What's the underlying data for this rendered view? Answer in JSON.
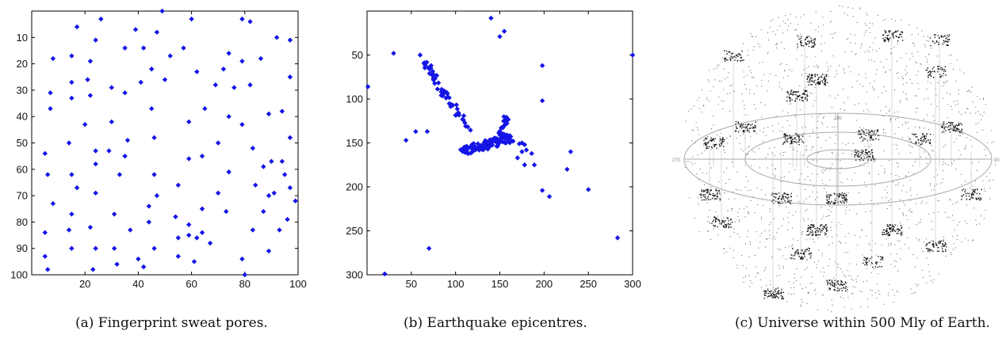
{
  "captions": {
    "a": "(a) Fingerprint sweat pores.",
    "b": "(b) Earthquake epicentres.",
    "c": "(c) Universe within 500 Mly of Earth."
  },
  "colors": {
    "marker": "#1515e6",
    "axis": "#000000",
    "ring": "#aaaaaa",
    "dots": "#222222"
  },
  "chart_data": [
    {
      "type": "scatter",
      "title": "",
      "xlabel": "",
      "ylabel": "",
      "xlim": [
        0,
        100
      ],
      "ylim": [
        100,
        0
      ],
      "y_inverted": true,
      "xticks": [
        20,
        40,
        60,
        80,
        100
      ],
      "yticks": [
        10,
        20,
        30,
        40,
        50,
        60,
        70,
        80,
        90,
        100
      ],
      "marker": "diamond",
      "series": [
        {
          "points": [
            [
              49,
              0
            ],
            [
              26,
              3
            ],
            [
              60,
              3
            ],
            [
              79,
              3
            ],
            [
              82,
              4
            ],
            [
              17,
              6
            ],
            [
              39,
              7
            ],
            [
              47,
              8
            ],
            [
              24,
              11
            ],
            [
              92,
              10
            ],
            [
              97,
              11
            ],
            [
              35,
              14
            ],
            [
              42,
              14
            ],
            [
              57,
              14
            ],
            [
              52,
              17
            ],
            [
              74,
              16
            ],
            [
              8,
              18
            ],
            [
              15,
              17
            ],
            [
              22,
              19
            ],
            [
              79,
              19
            ],
            [
              86,
              18
            ],
            [
              45,
              22
            ],
            [
              72,
              22
            ],
            [
              62,
              23
            ],
            [
              97,
              25
            ],
            [
              41,
              27
            ],
            [
              15,
              27
            ],
            [
              21,
              26
            ],
            [
              50,
              26
            ],
            [
              69,
              28
            ],
            [
              30,
              29
            ],
            [
              76,
              29
            ],
            [
              82,
              28
            ],
            [
              7,
              31
            ],
            [
              22,
              32
            ],
            [
              35,
              31
            ],
            [
              15,
              33
            ],
            [
              45,
              37
            ],
            [
              7,
              37
            ],
            [
              89,
              39
            ],
            [
              65,
              37
            ],
            [
              94,
              38
            ],
            [
              74,
              40
            ],
            [
              59,
              42
            ],
            [
              30,
              42
            ],
            [
              20,
              43
            ],
            [
              79,
              43
            ],
            [
              97,
              48
            ],
            [
              36,
              49
            ],
            [
              46,
              48
            ],
            [
              14,
              50
            ],
            [
              70,
              50
            ],
            [
              24,
              53
            ],
            [
              29,
              53
            ],
            [
              83,
              52
            ],
            [
              5,
              54
            ],
            [
              35,
              55
            ],
            [
              64,
              55
            ],
            [
              90,
              57
            ],
            [
              94,
              57
            ],
            [
              87,
              59
            ],
            [
              24,
              58
            ],
            [
              59,
              56
            ],
            [
              15,
              62
            ],
            [
              6,
              62
            ],
            [
              33,
              62
            ],
            [
              46,
              62
            ],
            [
              74,
              61
            ],
            [
              95,
              62
            ],
            [
              17,
              67
            ],
            [
              24,
              69
            ],
            [
              55,
              66
            ],
            [
              84,
              66
            ],
            [
              97,
              67
            ],
            [
              47,
              70
            ],
            [
              70,
              69
            ],
            [
              91,
              69
            ],
            [
              8,
              73
            ],
            [
              89,
              70
            ],
            [
              44,
              74
            ],
            [
              64,
              75
            ],
            [
              99,
              72
            ],
            [
              15,
              77
            ],
            [
              31,
              77
            ],
            [
              73,
              76
            ],
            [
              87,
              76
            ],
            [
              54,
              78
            ],
            [
              96,
              79
            ],
            [
              22,
              82
            ],
            [
              59,
              81
            ],
            [
              14,
              83
            ],
            [
              37,
              83
            ],
            [
              44,
              80
            ],
            [
              83,
              83
            ],
            [
              64,
              84
            ],
            [
              93,
              83
            ],
            [
              5,
              84
            ],
            [
              55,
              86
            ],
            [
              59,
              85
            ],
            [
              62,
              86
            ],
            [
              67,
              88
            ],
            [
              15,
              90
            ],
            [
              24,
              90
            ],
            [
              31,
              90
            ],
            [
              46,
              90
            ],
            [
              89,
              91
            ],
            [
              5,
              93
            ],
            [
              40,
              94
            ],
            [
              79,
              94
            ],
            [
              55,
              93
            ],
            [
              61,
              95
            ],
            [
              32,
              96
            ],
            [
              42,
              97
            ],
            [
              23,
              98
            ],
            [
              6,
              98
            ],
            [
              80,
              100
            ]
          ]
        }
      ]
    },
    {
      "type": "scatter",
      "title": "",
      "xlabel": "",
      "ylabel": "",
      "xlim": [
        0,
        300
      ],
      "ylim": [
        300,
        0
      ],
      "y_inverted": true,
      "xticks": [
        50,
        100,
        150,
        200,
        250,
        300
      ],
      "yticks": [
        50,
        100,
        150,
        200,
        250,
        300
      ],
      "marker": "diamond",
      "series": [
        {
          "points": [
            [
              140,
              8
            ],
            [
              155,
              23
            ],
            [
              150,
              29
            ],
            [
              30,
              48
            ],
            [
              300,
              50
            ],
            [
              60,
              50
            ],
            [
              198,
              62
            ],
            [
              1,
              86
            ],
            [
              198,
              102
            ],
            [
              44,
              147
            ],
            [
              55,
              137
            ],
            [
              68,
              137
            ],
            [
              180,
              158
            ],
            [
              186,
              162
            ],
            [
              189,
              175
            ],
            [
              178,
              175
            ],
            [
              170,
              167
            ],
            [
              206,
              211
            ],
            [
              198,
              204
            ],
            [
              230,
              160
            ],
            [
              226,
              180
            ],
            [
              250,
              203
            ],
            [
              283,
              258
            ],
            [
              70,
              270
            ],
            [
              20,
              299
            ],
            [
              172,
              151
            ],
            [
              165,
              148
            ],
            [
              175,
              160
            ],
            [
              175,
              150
            ],
            [
              178,
              152
            ]
          ]
        }
      ],
      "clusters": [
        {
          "description": "diagonal band",
          "from": [
            65,
            58
          ],
          "to": [
            115,
            135
          ],
          "count": 55,
          "spread": 4
        },
        {
          "description": "dense strip",
          "from": [
            108,
            160
          ],
          "to": [
            160,
            145
          ],
          "count": 110,
          "spread": 5
        },
        {
          "description": "upper branch",
          "from": [
            150,
            145
          ],
          "to": [
            158,
            120
          ],
          "count": 22,
          "spread": 3
        }
      ]
    }
  ],
  "universe_map": {
    "ring_labels": {
      "left": "270",
      "right": "90",
      "top": "180"
    }
  }
}
